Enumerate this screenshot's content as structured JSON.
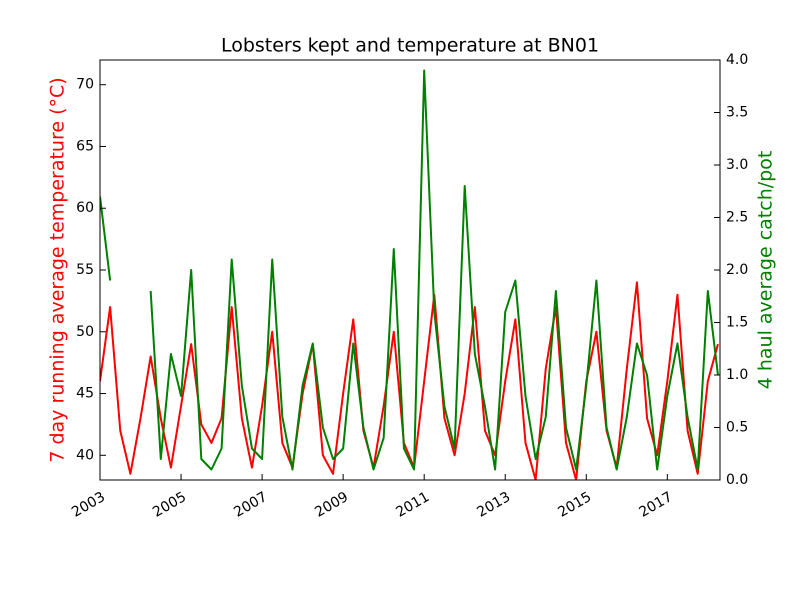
{
  "chart_data": {
    "type": "line",
    "title": "Lobsters kept and temperature at BN01",
    "y_label": "7 day running average temperature (°C)",
    "y2_label": "4 haul average catch/pot",
    "x": [
      2003.0,
      2003.25,
      2003.5,
      2003.75,
      2004.0,
      2004.25,
      2004.5,
      2004.75,
      2005.0,
      2005.25,
      2005.5,
      2005.75,
      2006.0,
      2006.25,
      2006.5,
      2006.75,
      2007.0,
      2007.25,
      2007.5,
      2007.75,
      2008.0,
      2008.25,
      2008.5,
      2008.75,
      2009.0,
      2009.25,
      2009.5,
      2009.75,
      2010.0,
      2010.25,
      2010.5,
      2010.75,
      2011.0,
      2011.25,
      2011.5,
      2011.75,
      2012.0,
      2012.25,
      2012.5,
      2012.75,
      2013.0,
      2013.25,
      2013.5,
      2013.75,
      2014.0,
      2014.25,
      2014.5,
      2014.75,
      2015.0,
      2015.25,
      2015.5,
      2015.75,
      2016.0,
      2016.25,
      2016.5,
      2016.75,
      2017.0,
      2017.25,
      2017.5,
      2017.75,
      2018.0,
      2018.25
    ],
    "xlim": [
      2003,
      2018.3
    ],
    "xticks": [
      2003,
      2005,
      2007,
      2009,
      2011,
      2013,
      2015,
      2017
    ],
    "ylim": [
      38,
      72
    ],
    "yticks": [
      40,
      45,
      50,
      55,
      60,
      65,
      70
    ],
    "y2lim": [
      0,
      4
    ],
    "y2ticks": [
      {
        "value": 0,
        "label": "0.0"
      },
      0.5,
      {
        "value": 1,
        "label": "1.0"
      },
      1.5,
      {
        "value": 2,
        "label": "2.0"
      },
      2.5,
      {
        "value": 3,
        "label": "3.0"
      },
      3.5,
      {
        "value": 4,
        "label": "4.0"
      }
    ],
    "series": [
      {
        "name": "temperature",
        "color": "#ff0000",
        "axis": "y",
        "values": [
          46,
          52,
          42,
          38.5,
          43,
          48,
          43,
          39,
          44,
          49,
          42.5,
          41,
          43,
          52,
          43,
          39,
          44,
          50,
          41,
          39,
          45,
          49,
          40,
          38.5,
          45,
          51,
          42,
          39,
          44,
          50,
          41,
          39,
          46,
          53,
          43,
          40,
          45,
          52,
          42,
          40,
          46,
          51,
          41,
          38,
          47,
          52,
          41,
          38,
          46,
          50,
          42,
          39,
          47,
          54,
          43,
          40,
          46,
          53,
          42,
          38.5,
          46,
          49
        ]
      },
      {
        "name": "catch",
        "color": "#008000",
        "axis": "y2",
        "values": [
          2.7,
          1.9,
          null,
          null,
          null,
          1.8,
          0.2,
          1.2,
          0.8,
          2.0,
          0.2,
          0.1,
          0.3,
          2.1,
          0.9,
          0.3,
          0.2,
          2.1,
          0.6,
          0.1,
          0.9,
          1.3,
          0.5,
          0.2,
          0.3,
          1.3,
          0.5,
          0.1,
          0.4,
          2.2,
          0.3,
          0.1,
          3.9,
          1.6,
          0.7,
          0.3,
          2.8,
          1.2,
          0.7,
          0.1,
          1.6,
          1.9,
          0.8,
          0.2,
          0.6,
          1.8,
          0.5,
          0.1,
          0.9,
          1.9,
          0.5,
          0.1,
          0.6,
          1.3,
          1.0,
          0.1,
          0.8,
          1.3,
          0.6,
          0.1,
          1.8,
          1.0
        ]
      }
    ]
  }
}
